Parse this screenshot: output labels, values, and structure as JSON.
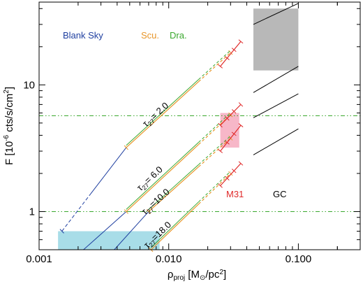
{
  "chart_data": {
    "type": "line",
    "xscale": "log",
    "yscale": "log",
    "xlim": [
      0.001,
      0.3
    ],
    "ylim": [
      0.5,
      45
    ],
    "grid": false,
    "xlabel": "ρproj [M⊙/pc²]",
    "ylabel": "F [10⁻⁶ cts/s/cm²]",
    "x_ticks": [
      {
        "value": 0.001,
        "label": "0.001"
      },
      {
        "value": 0.01,
        "label": "0.010"
      },
      {
        "value": 0.1,
        "label": "0.100"
      }
    ],
    "y_ticks": [
      {
        "value": 1,
        "label": "1"
      },
      {
        "value": 10,
        "label": "10"
      }
    ],
    "colors": {
      "blank_sky": "#1f3fa0",
      "sculptor": "#e8962a",
      "draco": "#3aa82e",
      "m31": "#e02a2a",
      "gc": "#000000",
      "cyan_box": "#a8dde8",
      "pink_box": "#f7b7c8",
      "gray_box": "#b8b8b8"
    },
    "series_labels": {
      "blank_sky": "Blank Sky",
      "sculptor": "Scu.",
      "draco": "Dra.",
      "m31": "M31",
      "gc": "GC"
    },
    "tau_labels": [
      {
        "prefix": "τ",
        "sub": "27",
        "text": "= 2.0",
        "value": 2.0
      },
      {
        "prefix": "τ",
        "sub": "27",
        "text": "= 6.0",
        "value": 6.0
      },
      {
        "prefix": "τ",
        "sub": "27",
        "text": "=10.0",
        "value": 10.0
      },
      {
        "prefix": "τ",
        "sub": "27",
        "text": "=18.0",
        "value": 18.0
      }
    ],
    "flux_lines": [
      {
        "tau": 2.0,
        "blank_sky": [
          0.0015,
          0.7,
          0.0047,
          3.2
        ],
        "sculptor": [
          0.0047,
          3.2,
          0.03,
          18.0
        ],
        "draco": [
          0.0047,
          3.2,
          0.03,
          18.0
        ],
        "m31": [
          0.025,
          14.0,
          0.036,
          22.0
        ],
        "gc": [
          0.045,
          30.0,
          0.1,
          44.0
        ]
      },
      {
        "tau": 6.0,
        "blank_sky": [
          0.0022,
          0.5,
          0.0047,
          1.0
        ],
        "sculptor": [
          0.0047,
          1.0,
          0.03,
          5.8
        ],
        "draco": [
          0.0047,
          1.0,
          0.03,
          5.8
        ],
        "m31": [
          0.025,
          4.8,
          0.036,
          7.0
        ],
        "gc": [
          0.045,
          8.7,
          0.1,
          14.0
        ]
      },
      {
        "tau": 10.0,
        "blank_sky": [
          0.0038,
          0.5,
          0.007,
          1.0
        ],
        "sculptor": [
          0.007,
          1.0,
          0.03,
          3.8
        ],
        "draco": [
          0.007,
          1.0,
          0.03,
          3.8
        ],
        "m31": [
          0.025,
          3.0,
          0.036,
          4.8
        ],
        "gc": [
          0.045,
          5.5,
          0.1,
          8.5
        ]
      },
      {
        "tau": 18.0,
        "sculptor": [
          0.0073,
          0.5,
          0.03,
          2.0
        ],
        "draco": [
          0.0073,
          0.5,
          0.03,
          2.0
        ],
        "m31": [
          0.025,
          1.6,
          0.036,
          2.4
        ],
        "gc": [
          0.045,
          2.8,
          0.1,
          4.5
        ]
      }
    ],
    "horizontal_lines": [
      {
        "y": 5.7,
        "color": "#3aa82e",
        "style": "dash-dot-dot"
      },
      {
        "y": 1.0,
        "color": "#3aa82e",
        "style": "dash-dot-dot"
      }
    ],
    "boxes": [
      {
        "name": "cyan",
        "x": [
          0.0014,
          0.0085
        ],
        "y": [
          0.5,
          0.7
        ]
      },
      {
        "name": "pink",
        "x": [
          0.025,
          0.035
        ],
        "y": [
          3.2,
          6.0
        ]
      },
      {
        "name": "gray",
        "x": [
          0.045,
          0.1
        ],
        "y": [
          13.0,
          40.0
        ]
      }
    ]
  }
}
